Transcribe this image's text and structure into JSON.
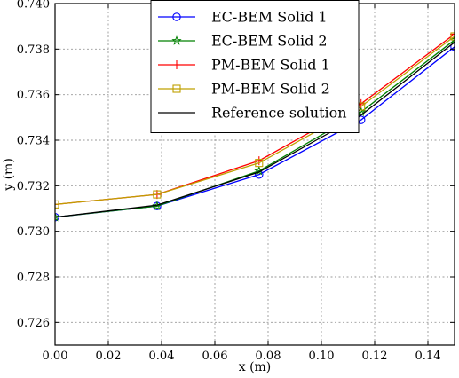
{
  "chart_data": {
    "type": "line",
    "xlabel": "x (m)",
    "ylabel": "y (m)",
    "xlim": [
      0.0,
      0.15
    ],
    "ylim": [
      0.725,
      0.74
    ],
    "xticks": [
      "0.00",
      "0.02",
      "0.04",
      "0.06",
      "0.08",
      "0.10",
      "0.12",
      "0.14"
    ],
    "yticks": [
      "0.726",
      "0.728",
      "0.730",
      "0.732",
      "0.734",
      "0.736",
      "0.738",
      "0.740"
    ],
    "grid": true,
    "legend_position": "top-center",
    "series": [
      {
        "name": "EC-BEM Solid 1",
        "color": "#0000ff",
        "marker": "circle",
        "x": [
          0.0,
          0.0383,
          0.0766,
          0.1149,
          0.15
        ],
        "y": [
          0.73062,
          0.73111,
          0.73249,
          0.73489,
          0.7381
        ]
      },
      {
        "name": "EC-BEM Solid 2",
        "color": "#008000",
        "marker": "star",
        "x": [
          0.0,
          0.0383,
          0.0766,
          0.1149,
          0.15
        ],
        "y": [
          0.73062,
          0.73111,
          0.73265,
          0.73524,
          0.7384
        ]
      },
      {
        "name": "PM-BEM Solid 1",
        "color": "#ff0000",
        "marker": "plus",
        "x": [
          0.0,
          0.0383,
          0.0766,
          0.1149,
          0.15
        ],
        "y": [
          0.73118,
          0.73162,
          0.7331,
          0.7356,
          0.73866
        ]
      },
      {
        "name": "PM-BEM Solid 2",
        "color": "#bfa000",
        "marker": "square",
        "x": [
          0.0,
          0.0383,
          0.0766,
          0.1149,
          0.15
        ],
        "y": [
          0.73118,
          0.73162,
          0.733,
          0.73548,
          0.73856
        ]
      },
      {
        "name": "Reference solution",
        "color": "#000000",
        "marker": "none",
        "x": [
          0.0,
          0.0383,
          0.0766,
          0.1149,
          0.15
        ],
        "y": [
          0.73062,
          0.73115,
          0.7326,
          0.7351,
          0.7383
        ]
      }
    ]
  }
}
